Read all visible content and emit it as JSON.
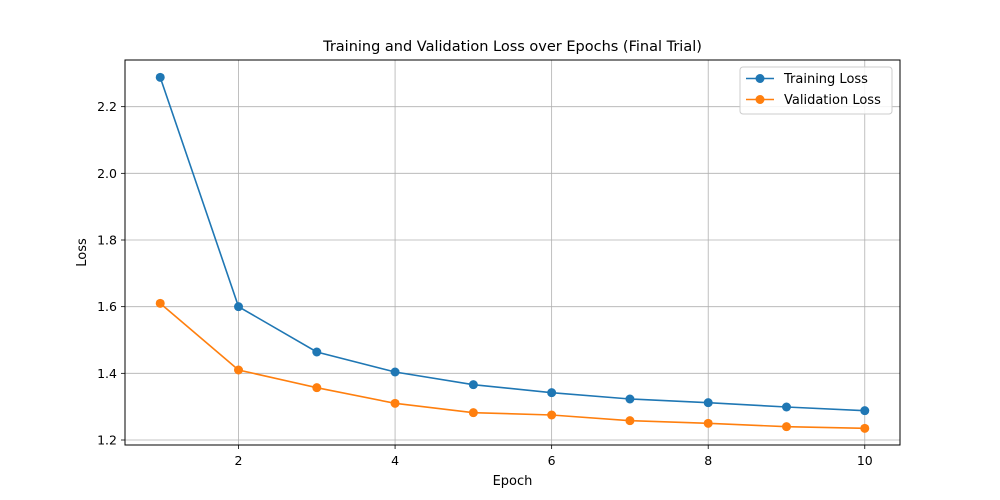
{
  "chart_data": {
    "type": "line",
    "title": "Training and Validation Loss over Epochs (Final Trial)",
    "xlabel": "Epoch",
    "ylabel": "Loss",
    "x": [
      1,
      2,
      3,
      4,
      5,
      6,
      7,
      8,
      9,
      10
    ],
    "xlim": [
      0.55,
      10.45
    ],
    "ylim": [
      1.185,
      2.34
    ],
    "xticks": [
      2,
      4,
      6,
      8,
      10
    ],
    "yticks": [
      1.2,
      1.4,
      1.6,
      1.8,
      2.0,
      2.2
    ],
    "xtick_labels": [
      "2",
      "4",
      "6",
      "8",
      "10"
    ],
    "ytick_labels": [
      "1.2",
      "1.4",
      "1.6",
      "1.8",
      "2.0",
      "2.2"
    ],
    "grid": true,
    "legend_position": "top-right",
    "series": [
      {
        "name": "Training Loss",
        "color": "#1f77b4",
        "values": [
          2.288,
          1.6,
          1.464,
          1.404,
          1.366,
          1.342,
          1.323,
          1.312,
          1.299,
          1.288
        ]
      },
      {
        "name": "Validation Loss",
        "color": "#ff7f0e",
        "values": [
          1.61,
          1.41,
          1.357,
          1.31,
          1.282,
          1.275,
          1.258,
          1.25,
          1.24,
          1.235
        ]
      }
    ]
  }
}
